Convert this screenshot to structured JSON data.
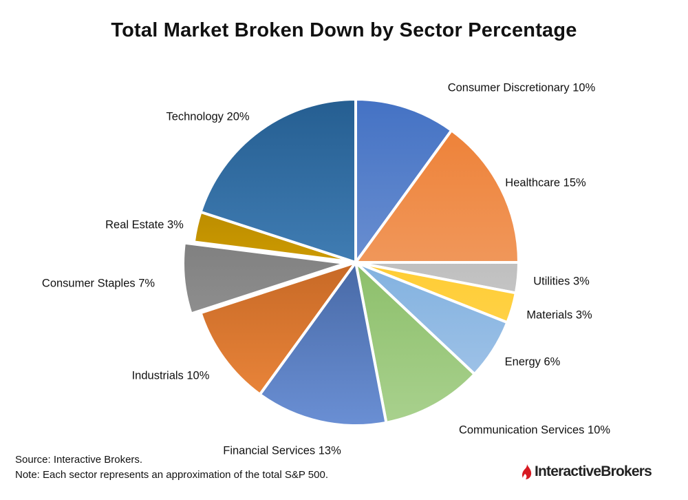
{
  "chart_data": {
    "type": "pie",
    "title": "Total Market Broken Down by Sector Percentage",
    "slices": [
      {
        "label": "Consumer Discretionary 10%",
        "name": "Consumer Discretionary",
        "value": 10,
        "color_light": "#8eaadc",
        "color_dark": "#4472c4"
      },
      {
        "label": "Healthcare 15%",
        "name": "Healthcare",
        "value": 15,
        "color_light": "#f4b183",
        "color_dark": "#ed7d31"
      },
      {
        "label": "Utilities 3%",
        "name": "Utilities",
        "value": 3,
        "color_light": "#d9d9d9",
        "color_dark": "#a5a5a5"
      },
      {
        "label": "Materials 3%",
        "name": "Materials",
        "value": 3,
        "color_light": "#ffd966",
        "color_dark": "#ffc000"
      },
      {
        "label": "Energy 6%",
        "name": "Energy",
        "value": 6,
        "color_light": "#a9c8ea",
        "color_dark": "#5b9bd5"
      },
      {
        "label": "Communication Services 10%",
        "name": "Communication Services",
        "value": 10,
        "color_light": "#a9d18e",
        "color_dark": "#70ad47"
      },
      {
        "label": "Financial Services 13%",
        "name": "Financial Services",
        "value": 13,
        "color_light": "#6a8fd4",
        "color_dark": "#264478"
      },
      {
        "label": "Industrials 10%",
        "name": "Industrials",
        "value": 10,
        "color_light": "#f08a3e",
        "color_dark": "#9e480e"
      },
      {
        "label": "Consumer Staples 7%",
        "name": "Consumer Staples",
        "value": 7,
        "color_light": "#a5a5a5",
        "color_dark": "#636363"
      },
      {
        "label": "Real Estate 3%",
        "name": "Real Estate",
        "value": 3,
        "color_light": "#ffc000",
        "color_dark": "#997300"
      },
      {
        "label": "Technology 20%",
        "name": "Technology",
        "value": 20,
        "color_light": "#5b9bd5",
        "color_dark": "#255e91"
      }
    ],
    "exploded": [
      "Consumer Staples"
    ]
  },
  "footer": {
    "source": "Source: Interactive Brokers.",
    "note": "Note: Each sector represents an approximation of the total S&P 500."
  },
  "brand": {
    "name": "InteractiveBrokers",
    "logo_color": "#d71921"
  }
}
